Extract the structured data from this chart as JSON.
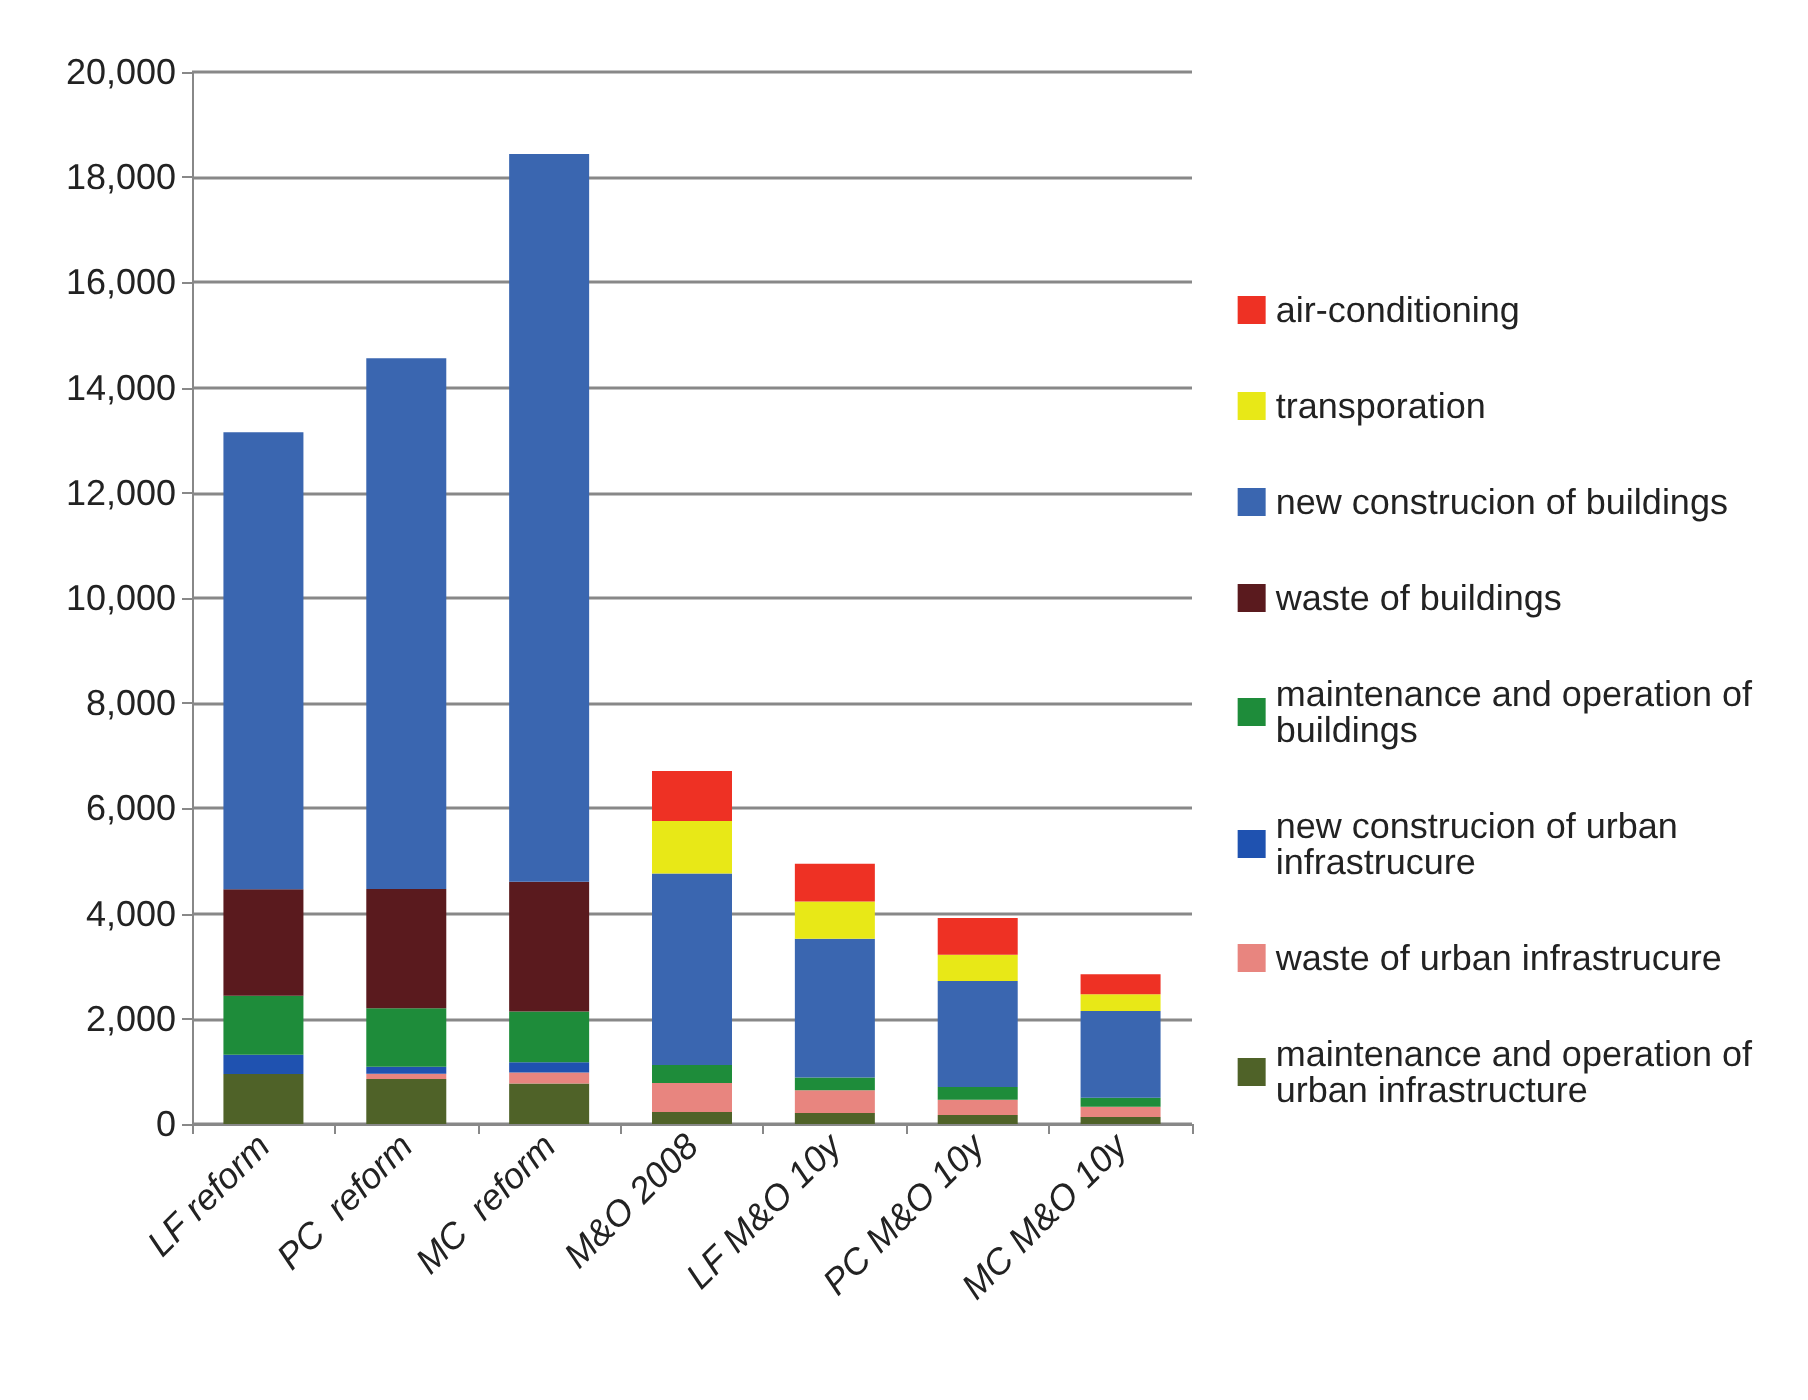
{
  "chart_data": {
    "type": "bar",
    "stacked": true,
    "categories": [
      "LF reform",
      "PC  reform",
      "MC  reform",
      "M&O 2008",
      "LF M&O 10y",
      "PC M&O 10y",
      "MC M&O 10y"
    ],
    "series": [
      {
        "name": "maintenance and operation of urban infrastructure",
        "color": "#4f6228",
        "values": [
          950,
          855,
          770,
          230,
          210,
          170,
          135
        ]
      },
      {
        "name": "waste of urban infrastrucure",
        "color": "#e8857f",
        "values": [
          0,
          100,
          210,
          550,
          430,
          290,
          195
        ]
      },
      {
        "name": "new construcion of urban infrastrucure",
        "color": "#1f52b0",
        "values": [
          366,
          135,
          195,
          0,
          0,
          0,
          0
        ]
      },
      {
        "name": "maintenance and operation of buildings",
        "color": "#1e8c3a",
        "values": [
          1120,
          1110,
          965,
          340,
          245,
          245,
          170
        ]
      },
      {
        "name": "waste of buildings",
        "color": "#5a1a1e",
        "values": [
          2025,
          2270,
          2465,
          0,
          0,
          0,
          0
        ]
      },
      {
        "name": "new construcion of buildings",
        "color": "#3a66b0",
        "values": [
          8690,
          10090,
          13835,
          3640,
          2635,
          2015,
          1650
        ]
      },
      {
        "name": "transporation",
        "color": "#e8e817",
        "values": [
          0,
          0,
          0,
          1000,
          710,
          500,
          315
        ]
      },
      {
        "name": "air-conditioning",
        "color": "#ee3124",
        "values": [
          0,
          0,
          0,
          950,
          720,
          695,
          380
        ]
      }
    ],
    "ylim": [
      0,
      20000
    ],
    "yticks": [
      {
        "value": 0,
        "label": "0"
      },
      {
        "value": 2000,
        "label": "2,000"
      },
      {
        "value": 4000,
        "label": "4,000"
      },
      {
        "value": 6000,
        "label": "6,000"
      },
      {
        "value": 8000,
        "label": "8,000"
      },
      {
        "value": 10000,
        "label": "10,000"
      },
      {
        "value": 12000,
        "label": "12,000"
      },
      {
        "value": 14000,
        "label": "14,000"
      },
      {
        "value": 16000,
        "label": "16,000"
      },
      {
        "value": 18000,
        "label": "18,000"
      },
      {
        "value": 20000,
        "label": "20,000"
      }
    ],
    "grid": "y",
    "legend": "right"
  }
}
